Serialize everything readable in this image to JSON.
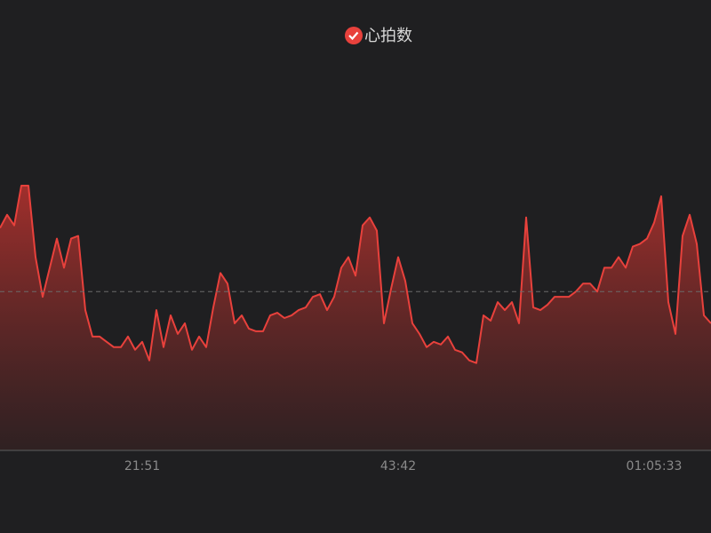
{
  "chart_data": {
    "type": "area",
    "categories": [
      null,
      null,
      null,
      null,
      null,
      null,
      null,
      null,
      null,
      null,
      null,
      null,
      null,
      null,
      null,
      null,
      null,
      null,
      null,
      null,
      "21:51",
      null,
      null,
      null,
      null,
      null,
      null,
      null,
      null,
      null,
      null,
      null,
      null,
      null,
      null,
      null,
      null,
      null,
      null,
      null,
      null,
      null,
      null,
      null,
      null,
      null,
      null,
      null,
      null,
      null,
      null,
      null,
      null,
      null,
      null,
      null,
      "43:42",
      null,
      null,
      null,
      null,
      null,
      null,
      null,
      null,
      null,
      null,
      null,
      null,
      null,
      null,
      null,
      null,
      null,
      null,
      null,
      null,
      null,
      null,
      null,
      null,
      null,
      null,
      null,
      null,
      null,
      null,
      null,
      null,
      null,
      null,
      null,
      "01:05:33",
      null,
      null,
      null,
      null,
      null,
      null,
      null,
      null
    ],
    "series": [
      {
        "name": "心拍数",
        "color": "#e8413c",
        "values": [
          84,
          89,
          85,
          100,
          100,
          73,
          58,
          69,
          80,
          69,
          80,
          81,
          53,
          43,
          43,
          41,
          39,
          39,
          43,
          38,
          41,
          34,
          53,
          39,
          51,
          44,
          48,
          38,
          43,
          39,
          54,
          67,
          63,
          48,
          51,
          46,
          45,
          45,
          51,
          52,
          50,
          51,
          53,
          54,
          58,
          59,
          53,
          58,
          69,
          73,
          66,
          85,
          88,
          83,
          48,
          61,
          73,
          64,
          48,
          44,
          39,
          41,
          40,
          43,
          38,
          37,
          34,
          33,
          51,
          49,
          56,
          53,
          56,
          48,
          88,
          54,
          53,
          55,
          58,
          58,
          58,
          60,
          63,
          63,
          60,
          69,
          69,
          73,
          69,
          77,
          78,
          80,
          86,
          96,
          56,
          44,
          81,
          89,
          78,
          51,
          48
        ]
      }
    ],
    "ylim": [
      0,
      150
    ],
    "mark_line": 60,
    "grid": false
  }
}
